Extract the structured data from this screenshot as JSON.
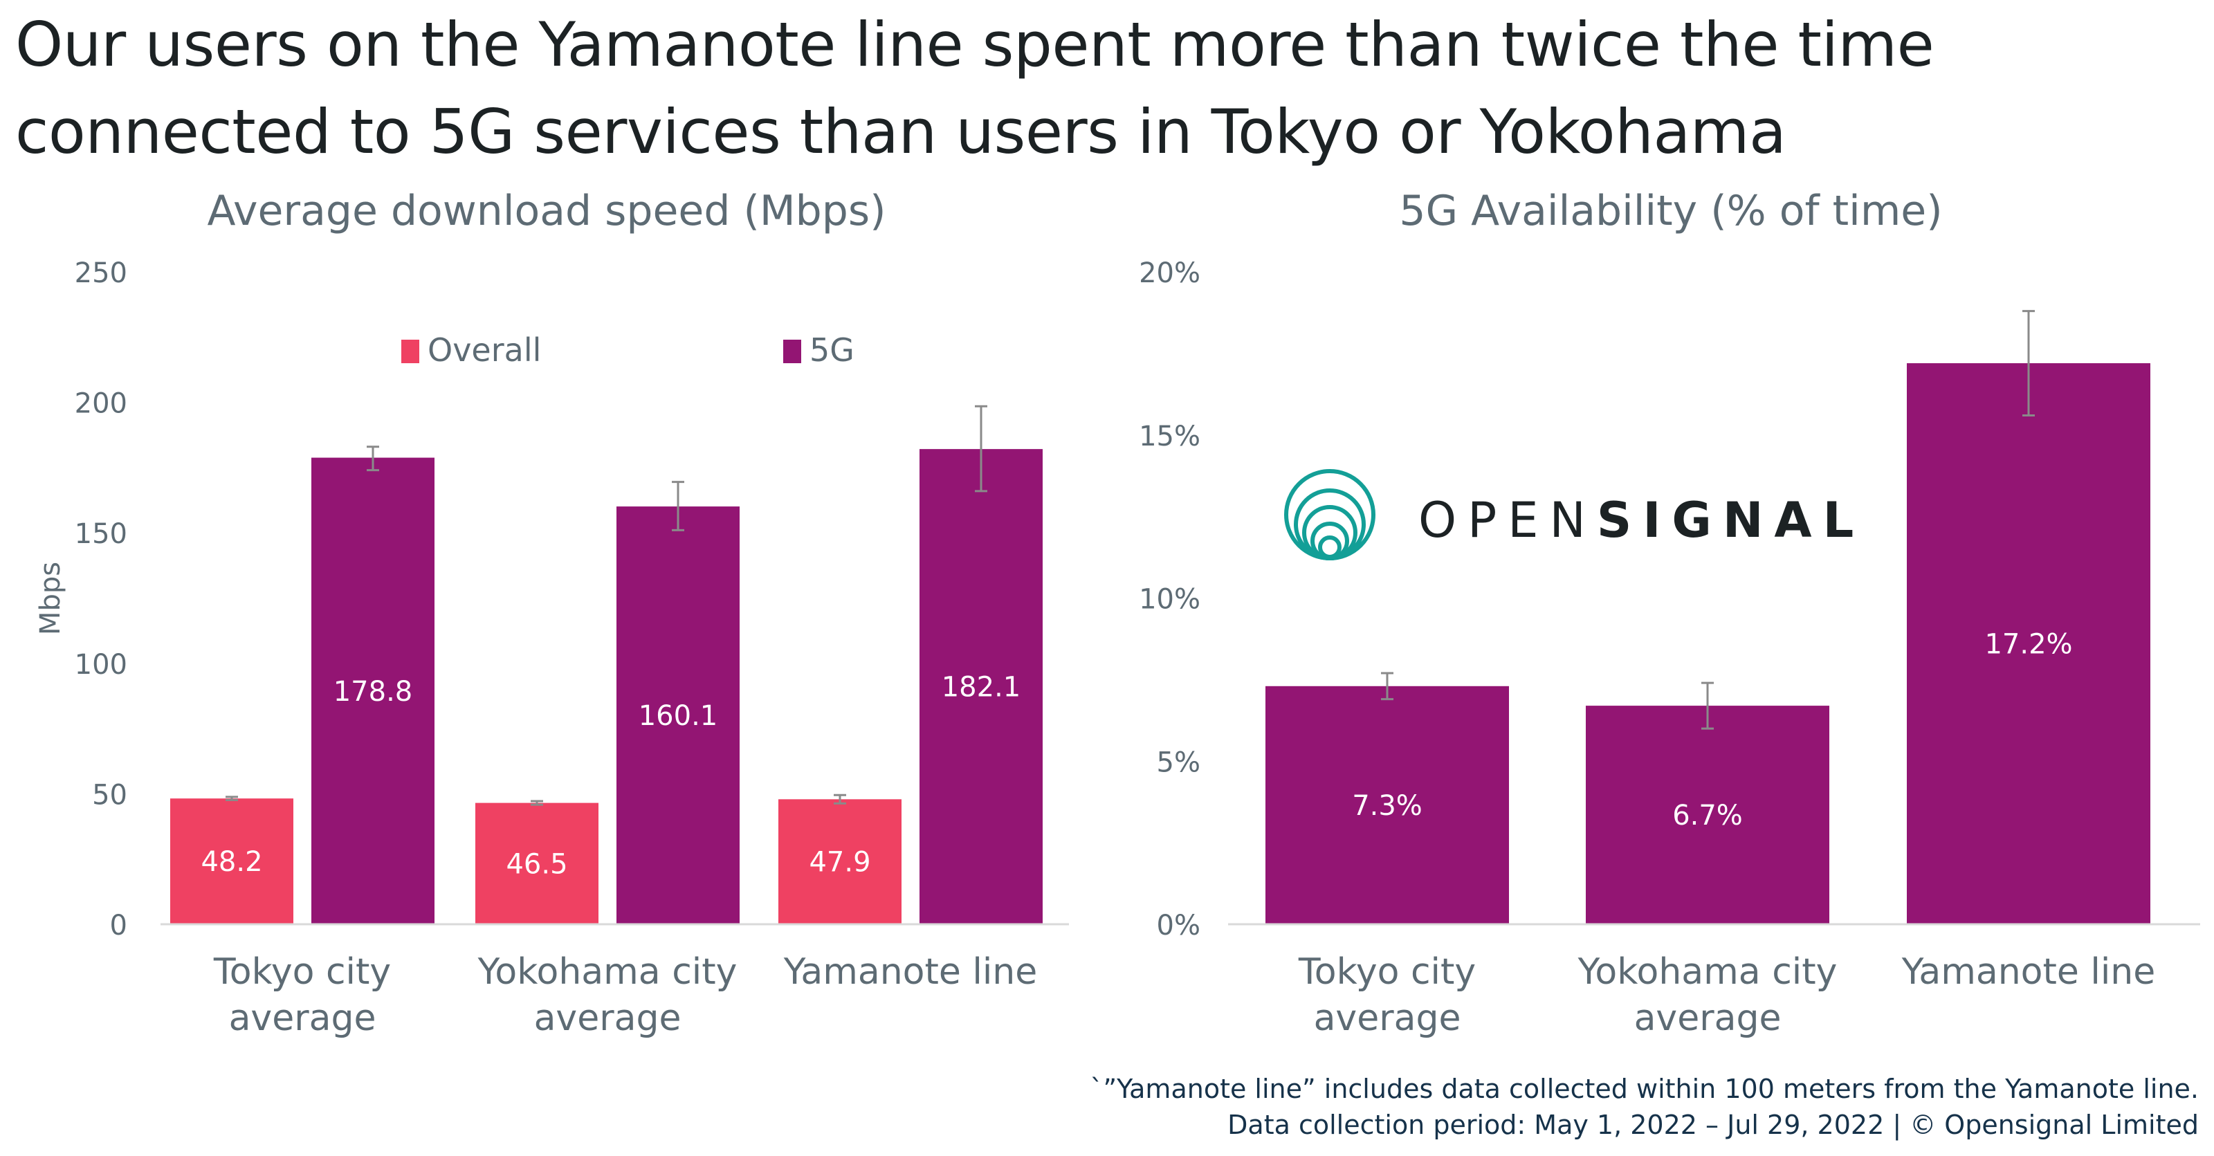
{
  "headline": {
    "line1": "Our users on the Yamanote line spent more than twice the time",
    "line2": "connected to 5G services than users in Tokyo or Yokohama"
  },
  "colors": {
    "overall": "#ef4162",
    "fiveg": "#931573",
    "axis_text": "#5d6b74",
    "error_bar": "#8a8a8a",
    "logo_teal": "#139f97"
  },
  "logo": {
    "icon": "opensignal-rings-icon",
    "light": "OPEN",
    "bold": "SIGNAL"
  },
  "footnote": {
    "line1": "`”Yamanote line” includes data collected within 100 meters from the Yamanote line.",
    "line2": "Data collection period: May 1, 2022 – Jul 29, 2022 | © Opensignal Limited"
  },
  "chart_data": [
    {
      "type": "bar",
      "title": "Average download speed (Mbps)",
      "ylabel": "Mbps",
      "ylim": [
        0,
        250
      ],
      "yticks": [
        "0",
        "50",
        "100",
        "150",
        "200",
        "250"
      ],
      "categories": [
        [
          "Tokyo city",
          "average"
        ],
        [
          "Yokohama city",
          "average"
        ],
        [
          "Yamanote line"
        ]
      ],
      "legend_position": "top",
      "series": [
        {
          "name": "Overall",
          "values": [
            48.2,
            46.5,
            47.9
          ],
          "labels": [
            "48.2",
            "46.5",
            "47.9"
          ],
          "error_low": [
            47.6,
            45.8,
            46.3
          ],
          "error_high": [
            48.8,
            47.2,
            49.5
          ]
        },
        {
          "name": "5G",
          "values": [
            178.8,
            160.1,
            182.1
          ],
          "labels": [
            "178.8",
            "160.1",
            "182.1"
          ],
          "error_low": [
            174.0,
            151.0,
            166.0
          ],
          "error_high": [
            183.0,
            169.5,
            198.5
          ]
        }
      ]
    },
    {
      "type": "bar",
      "title": "5G Availability (% of time)",
      "ylabel": "",
      "ylim": [
        0,
        20
      ],
      "yticks": [
        "0%",
        "5%",
        "10%",
        "15%",
        "20%"
      ],
      "categories": [
        [
          "Tokyo city",
          "average"
        ],
        [
          "Yokohama city",
          "average"
        ],
        [
          "Yamanote line"
        ]
      ],
      "series": [
        {
          "values": [
            7.3,
            6.7,
            17.2
          ],
          "labels": [
            "7.3%",
            "6.7%",
            "17.2%"
          ],
          "error_low": [
            6.9,
            6.0,
            15.6
          ],
          "error_high": [
            7.7,
            7.4,
            18.8
          ]
        }
      ]
    }
  ]
}
